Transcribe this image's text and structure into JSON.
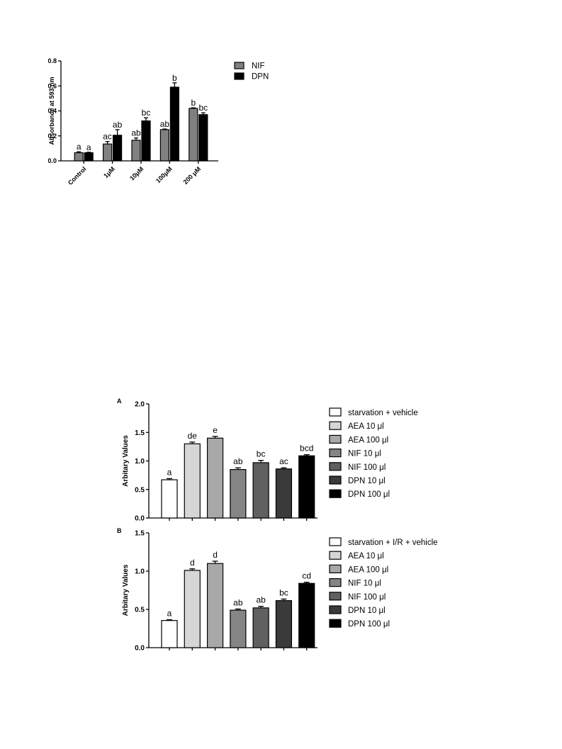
{
  "chart_data": [
    {
      "type": "bar",
      "title": "",
      "xlabel": "",
      "ylabel": "Absorbance at 593 nm",
      "ylim": [
        0,
        0.8
      ],
      "yticks": [
        "0.0",
        "0.2",
        "0.4",
        "0.6",
        "0.8"
      ],
      "categories": [
        "Control",
        "1μM",
        "10μM",
        "100μM",
        "200 μM"
      ],
      "series": [
        {
          "name": "NIF",
          "color": "#808080",
          "values": [
            0.065,
            0.135,
            0.165,
            0.25,
            0.42
          ],
          "errors": [
            0.008,
            0.02,
            0.018,
            0.005,
            0.005
          ],
          "labels": [
            "a",
            "ac",
            "ab",
            "ab",
            "b"
          ]
        },
        {
          "name": "DPN",
          "color": "#000000",
          "values": [
            0.065,
            0.205,
            0.32,
            0.59,
            0.37
          ],
          "errors": [
            0.004,
            0.045,
            0.025,
            0.035,
            0.015
          ],
          "labels": [
            "a",
            "ab",
            "bc",
            "b",
            "bc"
          ]
        }
      ],
      "legend": "top-right"
    },
    {
      "type": "bar",
      "panel": "A",
      "ylabel": "Arbitary Values",
      "ylim": [
        0,
        2.0
      ],
      "yticks": [
        "0.0",
        "0.5",
        "1.0",
        "1.5",
        "2.0"
      ],
      "values": [
        0.67,
        1.3,
        1.4,
        0.85,
        0.97,
        0.86,
        1.09
      ],
      "errors": [
        0.02,
        0.03,
        0.03,
        0.03,
        0.04,
        0.02,
        0.02
      ],
      "labels": [
        "a",
        "de",
        "e",
        "ab",
        "bc",
        "ac",
        "bcd"
      ],
      "legend_entries": [
        "starvation + vehicle",
        "AEA 10 μl",
        "AEA  100 μl",
        "NIF 10 μl",
        "NIF 100 μl",
        "DPN  10 μl",
        "DPN 100 μl"
      ],
      "colors": [
        "#ffffff",
        "#d6d6d6",
        "#a8a8a8",
        "#858585",
        "#606060",
        "#3a3a3a",
        "#000000"
      ],
      "legend": "right"
    },
    {
      "type": "bar",
      "panel": "B",
      "ylabel": "Arbitary Values",
      "ylim": [
        0,
        1.5
      ],
      "yticks": [
        "0.0",
        "0.5",
        "1.0",
        "1.5"
      ],
      "values": [
        0.355,
        1.01,
        1.1,
        0.49,
        0.52,
        0.615,
        0.84
      ],
      "errors": [
        0.01,
        0.02,
        0.03,
        0.015,
        0.02,
        0.02,
        0.015
      ],
      "labels": [
        "a",
        "d",
        "d",
        "ab",
        "ab",
        "bc",
        "cd"
      ],
      "legend_entries": [
        "starvation + I/R + vehicle",
        "AEA 10 μl",
        "AEA  100 μl",
        "NIF 10 μl",
        "NIF 100 μl",
        "DPN  10 μl",
        "DPN 100 μl"
      ],
      "colors": [
        "#ffffff",
        "#d6d6d6",
        "#a8a8a8",
        "#858585",
        "#606060",
        "#3a3a3a",
        "#000000"
      ],
      "legend": "right"
    }
  ]
}
